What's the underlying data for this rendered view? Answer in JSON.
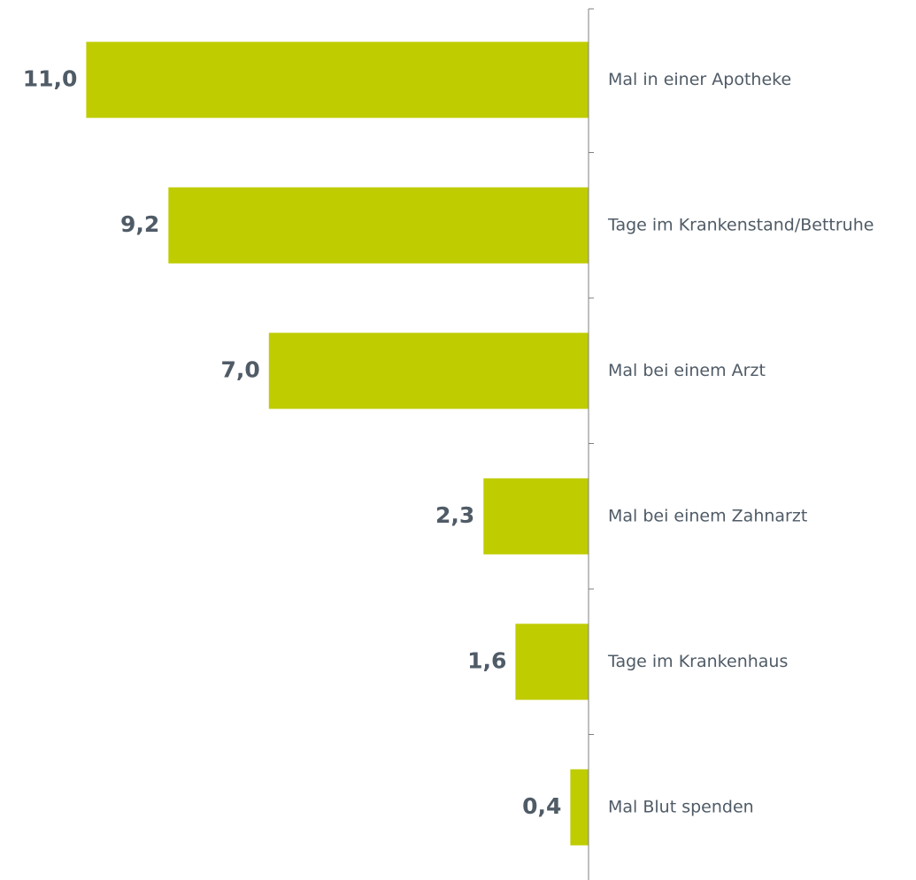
{
  "chart_data": {
    "type": "bar",
    "orientation": "horizontal",
    "categories": [
      "Mal in einer Apotheke",
      "Tage im Krankenstand/Bettruhe",
      "Mal bei einem Arzt",
      "Mal bei einem Zahnarzt",
      "Tage im Krankenhaus",
      "Mal Blut spenden"
    ],
    "values": [
      11.0,
      9.2,
      7.0,
      2.3,
      1.6,
      0.4
    ],
    "value_labels": [
      "11,0",
      "9,2",
      "7,0",
      "2,3",
      "1,6",
      "0,4"
    ],
    "bar_direction": "bars extend leftward from the axis",
    "bar_color": "#bfcc00",
    "axis_color": "#7f7f7f",
    "text_color": "#4f5b66",
    "grid": false,
    "legend": "none"
  }
}
